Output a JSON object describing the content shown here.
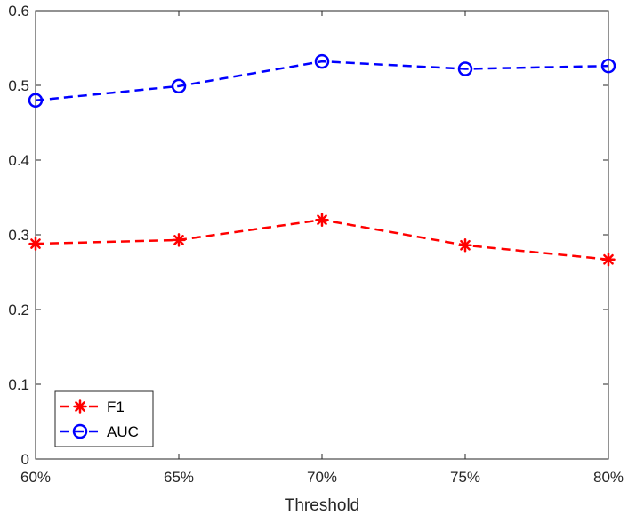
{
  "chart_data": {
    "type": "line",
    "title": "",
    "xlabel": "Threshold",
    "ylabel": "",
    "categories": [
      "60%",
      "65%",
      "70%",
      "75%",
      "80%"
    ],
    "ylim": [
      0,
      0.6
    ],
    "yticks": [
      0,
      0.1,
      0.2,
      0.3,
      0.4,
      0.5,
      0.6
    ],
    "ytick_labels": [
      "0",
      "0.1",
      "0.2",
      "0.3",
      "0.4",
      "0.5",
      "0.6"
    ],
    "grid": false,
    "legend_position": "bottom-left",
    "series": [
      {
        "name": "F1",
        "values": [
          0.288,
          0.293,
          0.32,
          0.286,
          0.267
        ],
        "color": "#ff0000",
        "marker": "asterisk",
        "line_style": "dashed"
      },
      {
        "name": "AUC",
        "values": [
          0.48,
          0.499,
          0.532,
          0.522,
          0.526
        ],
        "color": "#0000ff",
        "marker": "circle",
        "line_style": "dashed"
      }
    ]
  }
}
